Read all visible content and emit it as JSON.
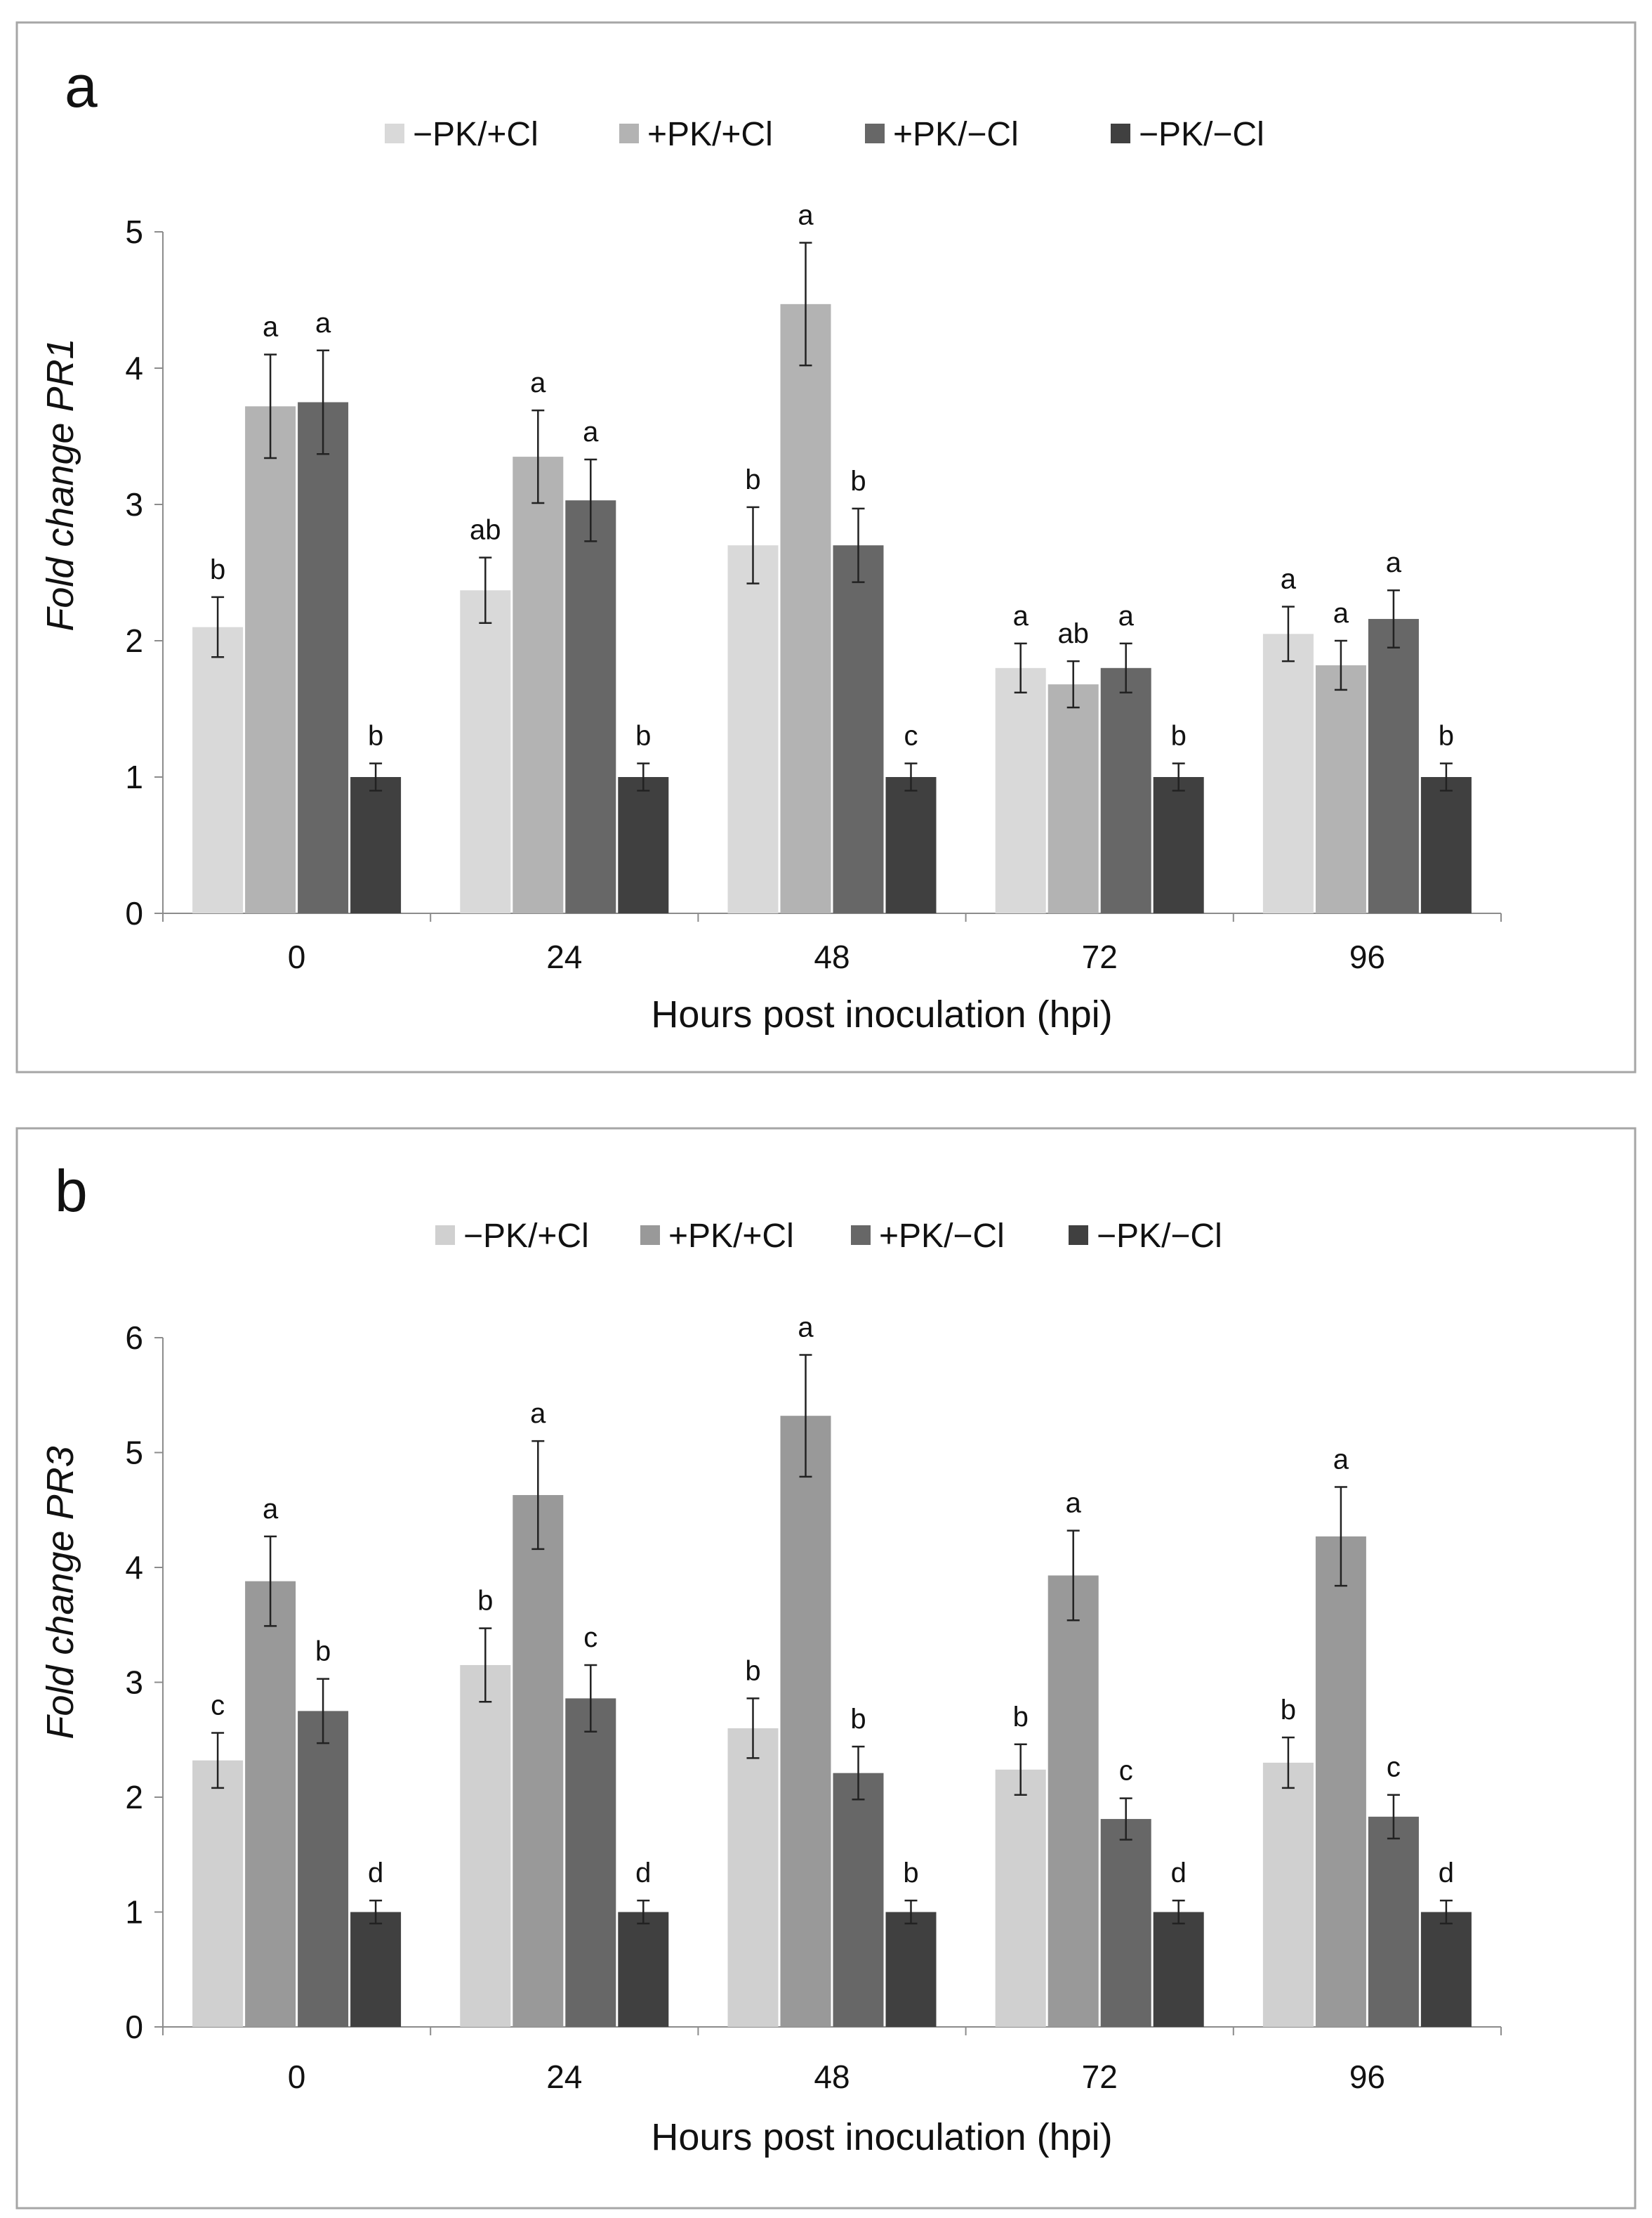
{
  "chart_data": [
    {
      "type": "bar",
      "panel_label": "a",
      "xlabel": "Hours post inoculation (hpi)",
      "ylabel": "Fold change PR1",
      "ylim": [
        0,
        5
      ],
      "yticks": [
        "0",
        "1",
        "2",
        "3",
        "4",
        "5"
      ],
      "categories": [
        "0",
        "24",
        "48",
        "72",
        "96"
      ],
      "legend_position": "top",
      "series": [
        {
          "name": "−PK/+Cl",
          "color": "#d9d9d9",
          "values": [
            2.1,
            2.37,
            2.7,
            1.8,
            2.05
          ],
          "errors": [
            0.22,
            0.24,
            0.28,
            0.18,
            0.2
          ],
          "letters": [
            "b",
            "ab",
            "b",
            "a",
            "a"
          ]
        },
        {
          "name": "+PK/+Cl",
          "color": "#b3b3b3",
          "values": [
            3.72,
            3.35,
            4.47,
            1.68,
            1.82
          ],
          "errors": [
            0.38,
            0.34,
            0.45,
            0.17,
            0.18
          ],
          "letters": [
            "a",
            "a",
            "a",
            "ab",
            "a"
          ]
        },
        {
          "name": "+PK/−Cl",
          "color": "#676767",
          "values": [
            3.75,
            3.03,
            2.7,
            1.8,
            2.16
          ],
          "errors": [
            0.38,
            0.3,
            0.27,
            0.18,
            0.21
          ],
          "letters": [
            "a",
            "a",
            "b",
            "a",
            "a"
          ]
        },
        {
          "name": "−PK/−Cl",
          "color": "#404040",
          "values": [
            1.0,
            1.0,
            1.0,
            1.0,
            1.0
          ],
          "errors": [
            0.1,
            0.1,
            0.1,
            0.1,
            0.1
          ],
          "letters": [
            "b",
            "b",
            "c",
            "b",
            "b"
          ]
        }
      ]
    },
    {
      "type": "bar",
      "panel_label": "b",
      "xlabel": "Hours post inoculation (hpi)",
      "ylabel": "Fold change PR3",
      "ylim": [
        0,
        6
      ],
      "yticks": [
        "0",
        "1",
        "2",
        "3",
        "4",
        "5",
        "6"
      ],
      "categories": [
        "0",
        "24",
        "48",
        "72",
        "96"
      ],
      "legend_position": "top",
      "series": [
        {
          "name": "−PK/+Cl",
          "color": "#d0d0d0",
          "values": [
            2.32,
            3.15,
            2.6,
            2.24,
            2.3
          ],
          "errors": [
            0.24,
            0.32,
            0.26,
            0.22,
            0.22
          ],
          "letters": [
            "c",
            "b",
            "b",
            "b",
            "b"
          ]
        },
        {
          "name": "+PK/+Cl",
          "color": "#999999",
          "values": [
            3.88,
            4.63,
            5.32,
            3.93,
            4.27
          ],
          "errors": [
            0.39,
            0.47,
            0.53,
            0.39,
            0.43
          ],
          "letters": [
            "a",
            "a",
            "a",
            "a",
            "a"
          ]
        },
        {
          "name": "+PK/−Cl",
          "color": "#676767",
          "values": [
            2.75,
            2.86,
            2.21,
            1.81,
            1.83
          ],
          "errors": [
            0.28,
            0.29,
            0.23,
            0.18,
            0.19
          ],
          "letters": [
            "b",
            "c",
            "b",
            "c",
            "c"
          ]
        },
        {
          "name": "−PK/−Cl",
          "color": "#404040",
          "values": [
            1.0,
            1.0,
            1.0,
            1.0,
            1.0
          ],
          "errors": [
            0.1,
            0.1,
            0.1,
            0.1,
            0.1
          ],
          "letters": [
            "d",
            "d",
            "b",
            "d",
            "d"
          ]
        }
      ]
    }
  ]
}
